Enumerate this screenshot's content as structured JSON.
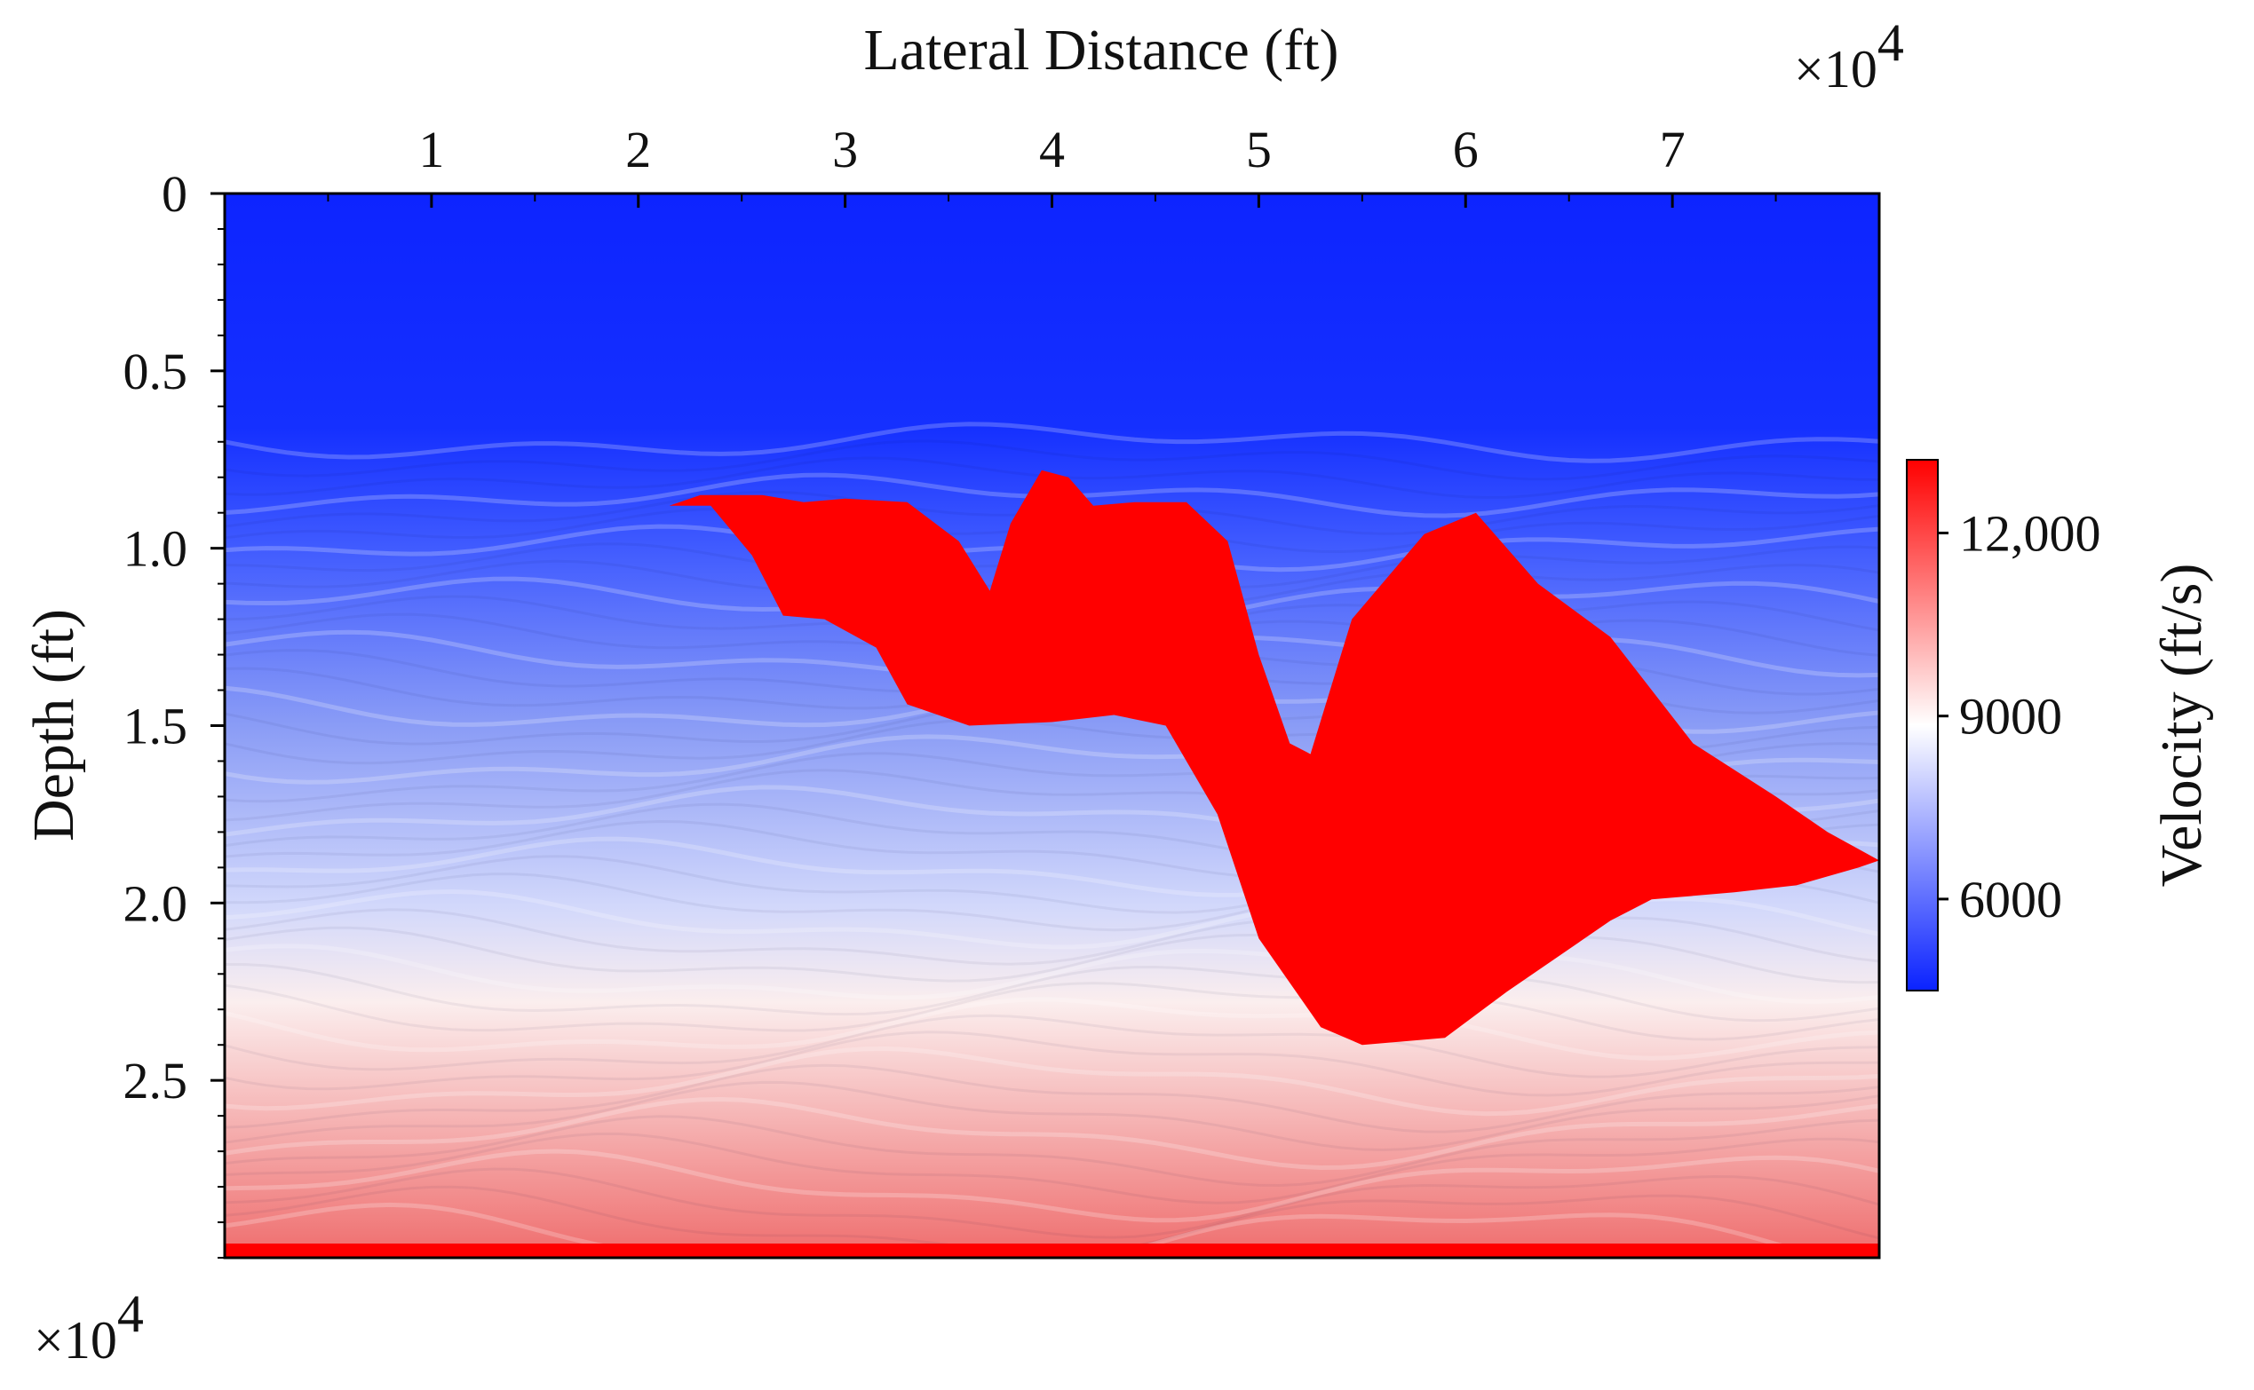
{
  "chart_data": {
    "type": "heatmap",
    "title": "",
    "xlabel": "Lateral Distance (ft)",
    "ylabel": "Depth (ft)",
    "x_multiplier": "×10",
    "x_multiplier_exp": "4",
    "y_multiplier": "×10",
    "y_multiplier_exp": "4",
    "x_axis_position": "top",
    "xlim": [
      0,
      8
    ],
    "ylim": [
      0,
      3
    ],
    "y_inverted": true,
    "x_ticks": [
      {
        "value": 1,
        "label": "1"
      },
      {
        "value": 2,
        "label": "2"
      },
      {
        "value": 3,
        "label": "3"
      },
      {
        "value": 4,
        "label": "4"
      },
      {
        "value": 5,
        "label": "5"
      },
      {
        "value": 6,
        "label": "6"
      },
      {
        "value": 7,
        "label": "7"
      }
    ],
    "y_ticks": [
      {
        "value": 0,
        "label": "0"
      },
      {
        "value": 0.5,
        "label": "0.5"
      },
      {
        "value": 1.0,
        "label": "1.0"
      },
      {
        "value": 1.5,
        "label": "1.5"
      },
      {
        "value": 2.0,
        "label": "2.0"
      },
      {
        "value": 2.5,
        "label": "2.5"
      }
    ],
    "colorbar": {
      "label": "Velocity (ft/s)",
      "range": [
        4500,
        13200
      ],
      "colormap": [
        "#0a22ff",
        "#ffffff",
        "#ff0000"
      ],
      "ticks": [
        {
          "value": 6000,
          "label": "6000"
        },
        {
          "value": 9000,
          "label": "9000"
        },
        {
          "value": 12000,
          "label": "12,000"
        }
      ]
    },
    "salt_body": {
      "velocity": 13200,
      "color": "#ff0000",
      "outline": [
        [
          2.15,
          0.88
        ],
        [
          2.3,
          0.85
        ],
        [
          2.6,
          0.85
        ],
        [
          2.8,
          0.87
        ],
        [
          3.0,
          0.86
        ],
        [
          3.3,
          0.87
        ],
        [
          3.55,
          0.98
        ],
        [
          3.7,
          1.12
        ],
        [
          3.8,
          0.93
        ],
        [
          3.95,
          0.78
        ],
        [
          4.08,
          0.8
        ],
        [
          4.2,
          0.88
        ],
        [
          4.4,
          0.87
        ],
        [
          4.65,
          0.87
        ],
        [
          4.85,
          0.98
        ],
        [
          5.0,
          1.3
        ],
        [
          5.15,
          1.55
        ],
        [
          5.25,
          1.58
        ],
        [
          5.45,
          1.2
        ],
        [
          5.8,
          0.96
        ],
        [
          6.05,
          0.9
        ],
        [
          6.35,
          1.1
        ],
        [
          6.7,
          1.25
        ],
        [
          7.1,
          1.55
        ],
        [
          7.5,
          1.7
        ],
        [
          7.75,
          1.8
        ],
        [
          8.0,
          1.88
        ],
        [
          7.9,
          1.9
        ],
        [
          7.6,
          1.95
        ],
        [
          7.3,
          1.97
        ],
        [
          6.9,
          1.99
        ],
        [
          6.7,
          2.05
        ],
        [
          6.2,
          2.25
        ],
        [
          5.9,
          2.38
        ],
        [
          5.5,
          2.4
        ],
        [
          5.3,
          2.35
        ],
        [
          5.0,
          2.1
        ],
        [
          4.8,
          1.75
        ],
        [
          4.55,
          1.5
        ],
        [
          4.3,
          1.47
        ],
        [
          4.0,
          1.49
        ],
        [
          3.6,
          1.5
        ],
        [
          3.3,
          1.44
        ],
        [
          3.15,
          1.28
        ],
        [
          2.9,
          1.2
        ],
        [
          2.7,
          1.19
        ],
        [
          2.55,
          1.02
        ],
        [
          2.35,
          0.88
        ]
      ]
    },
    "water_bottom_depth": 0.7,
    "velocity_profile": [
      {
        "depth": 0.0,
        "velocity": 4500
      },
      {
        "depth": 0.65,
        "velocity": 4700
      },
      {
        "depth": 1.0,
        "velocity": 5300
      },
      {
        "depth": 1.5,
        "velocity": 6600
      },
      {
        "depth": 2.0,
        "velocity": 8000
      },
      {
        "depth": 2.3,
        "velocity": 8800
      },
      {
        "depth": 2.6,
        "velocity": 10000
      },
      {
        "depth": 2.95,
        "velocity": 11200
      },
      {
        "depth": 3.0,
        "velocity": 13200
      }
    ]
  }
}
